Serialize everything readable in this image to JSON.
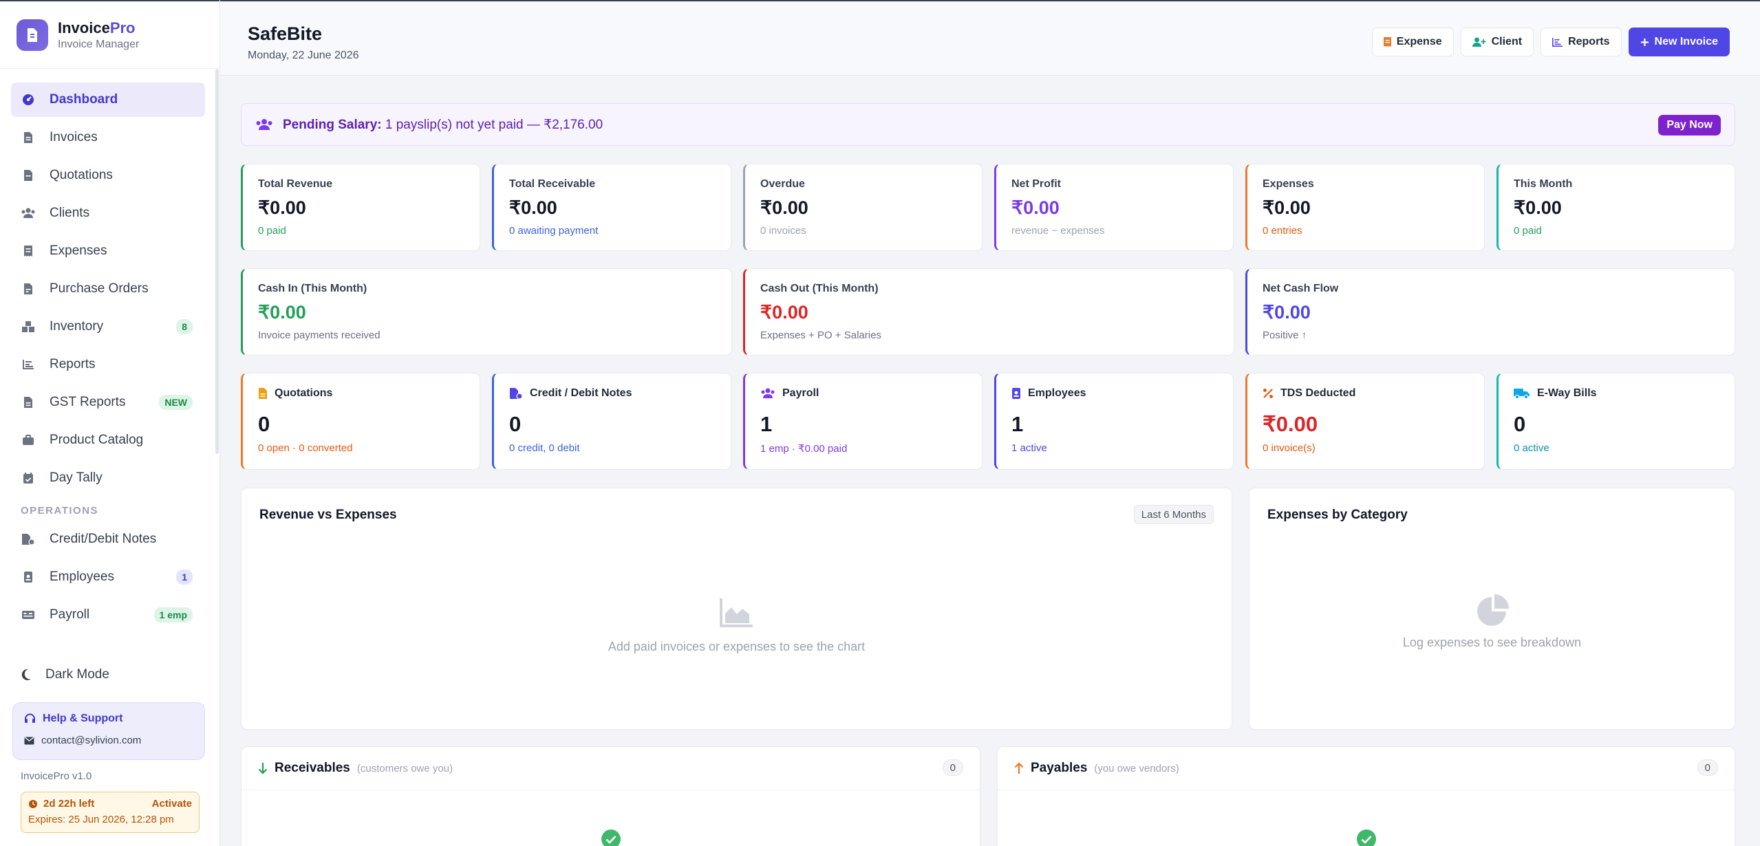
{
  "brand": {
    "name_main": "Invoice",
    "name_accent": "Pro",
    "subtitle": "Invoice Manager"
  },
  "sidebar": {
    "items": [
      {
        "label": "Dashboard",
        "icon": "gauge-icon"
      },
      {
        "label": "Invoices",
        "icon": "file-invoice-icon"
      },
      {
        "label": "Quotations",
        "icon": "file-icon"
      },
      {
        "label": "Clients",
        "icon": "users-icon"
      },
      {
        "label": "Expenses",
        "icon": "receipt-icon"
      },
      {
        "label": "Purchase Orders",
        "icon": "file-order-icon"
      },
      {
        "label": "Inventory",
        "icon": "boxes-icon",
        "badge": "8"
      },
      {
        "label": "Reports",
        "icon": "chart-bar-icon"
      },
      {
        "label": "GST Reports",
        "icon": "file-gst-icon",
        "badge": "NEW"
      },
      {
        "label": "Product Catalog",
        "icon": "briefcase-icon"
      },
      {
        "label": "Day Tally",
        "icon": "calendar-check-icon"
      }
    ],
    "section_operations": "OPERATIONS",
    "ops_items": [
      {
        "label": "Credit/Debit Notes",
        "icon": "file-notes-icon"
      },
      {
        "label": "Employees",
        "icon": "id-badge-icon",
        "badge": "1"
      },
      {
        "label": "Payroll",
        "icon": "money-check-icon",
        "badge": "1 emp"
      }
    ],
    "dark_mode": "Dark Mode",
    "help_title": "Help & Support",
    "help_email": "contact@sylivion.com",
    "version": "InvoicePro v1.0",
    "trial_left": "2d 22h left",
    "trial_activate": "Activate",
    "trial_expires": "Expires: 25 Jun 2026, 12:28 pm"
  },
  "header": {
    "title": "SafeBite",
    "date": "Monday, 22 June 2026",
    "btn_expense": "Expense",
    "btn_client": "Client",
    "btn_reports": "Reports",
    "btn_new_invoice": "New Invoice"
  },
  "banner": {
    "bold": "Pending Salary:",
    "text": "1 payslip(s) not yet paid — ₹2,176.00",
    "button": "Pay Now"
  },
  "stats_row1": [
    {
      "label": "Total Revenue",
      "value": "₹0.00",
      "sub": "0 paid",
      "accent": "#22a05a",
      "value_color": "#111827",
      "sub_color": "#22a05a"
    },
    {
      "label": "Total Receivable",
      "value": "₹0.00",
      "sub": "0 awaiting payment",
      "accent": "#3b63e0",
      "value_color": "#111827",
      "sub_color": "#3b63e0"
    },
    {
      "label": "Overdue",
      "value": "₹0.00",
      "sub": "0 invoices",
      "accent": "#9ca3af",
      "value_color": "#111827",
      "sub_color": "#9ca3af"
    },
    {
      "label": "Net Profit",
      "value": "₹0.00",
      "sub": "revenue − expenses",
      "accent": "#7c3aed",
      "value_color": "#7c3aed",
      "sub_color": "#9ca3af"
    },
    {
      "label": "Expenses",
      "value": "₹0.00",
      "sub": "0 entries",
      "accent": "#ea7a2a",
      "value_color": "#111827",
      "sub_color": "#ea580c"
    },
    {
      "label": "This Month",
      "value": "₹0.00",
      "sub": "0 paid",
      "accent": "#14b8a6",
      "value_color": "#111827",
      "sub_color": "#22a05a"
    }
  ],
  "stats_row2": [
    {
      "label": "Cash In (This Month)",
      "value": "₹0.00",
      "sub": "Invoice payments received",
      "accent": "#22a05a",
      "value_color": "#22a05a",
      "sub_color": "#6b7280"
    },
    {
      "label": "Cash Out (This Month)",
      "value": "₹0.00",
      "sub": "Expenses + PO + Salaries",
      "accent": "#dc2626",
      "value_color": "#dc2626",
      "sub_color": "#6b7280"
    },
    {
      "label": "Net Cash Flow",
      "value": "₹0.00",
      "sub": "Positive ↑",
      "accent": "#4f46e5",
      "value_color": "#4f46e5",
      "sub_color": "#6b7280"
    }
  ],
  "stats_row3": [
    {
      "label": "Quotations",
      "icon": "file-icon",
      "value": "0",
      "sub": "0 open · 0 converted",
      "accent": "#ea7a2a",
      "icon_color": "#f59e0b",
      "value_color": "#111827",
      "sub_color": "#ea580c"
    },
    {
      "label": "Credit / Debit Notes",
      "icon": "file-notes-icon",
      "value": "0",
      "sub": "0 credit, 0 debit",
      "accent": "#3b63e0",
      "icon_color": "#4f46e5",
      "value_color": "#111827",
      "sub_color": "#3b63e0"
    },
    {
      "label": "Payroll",
      "icon": "users-icon",
      "value": "1",
      "sub": "1 emp · ₹0.00 paid",
      "accent": "#7c3aed",
      "icon_color": "#7c3aed",
      "value_color": "#111827",
      "sub_color": "#7c3aed"
    },
    {
      "label": "Employees",
      "icon": "id-badge-icon",
      "value": "1",
      "sub": "1 active",
      "accent": "#4f46e5",
      "icon_color": "#4f46e5",
      "value_color": "#111827",
      "sub_color": "#4f46e5"
    },
    {
      "label": "TDS Deducted",
      "icon": "percent-icon",
      "value": "₹0.00",
      "sub": "0 invoice(s)",
      "accent": "#ea7a2a",
      "icon_color": "#ea580c",
      "value_color": "#dc2626",
      "sub_color": "#ea580c"
    },
    {
      "label": "E-Way Bills",
      "icon": "truck-icon",
      "value": "0",
      "sub": "0 active",
      "accent": "#14b8a6",
      "icon_color": "#0ea5e9",
      "value_color": "#111827",
      "sub_color": "#0891b2"
    }
  ],
  "panels": {
    "revenue_title": "Revenue vs Expenses",
    "revenue_range": "Last 6 Months",
    "revenue_empty": "Add paid invoices or expenses to see the chart",
    "category_title": "Expenses by Category",
    "category_empty": "Log expenses to see breakdown",
    "receivables_title": "Receivables",
    "receivables_note": "(customers owe you)",
    "receivables_count": "0",
    "payables_title": "Payables",
    "payables_note": "(you owe vendors)",
    "payables_count": "0"
  }
}
